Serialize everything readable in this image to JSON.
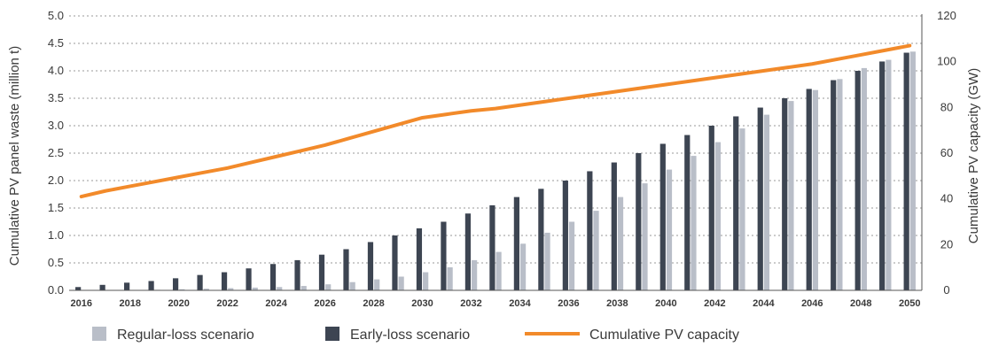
{
  "chart_data": {
    "type": "bar",
    "categories": [
      "2016",
      "2017",
      "2018",
      "2019",
      "2020",
      "2021",
      "2022",
      "2023",
      "2024",
      "2025",
      "2026",
      "2027",
      "2028",
      "2029",
      "2030",
      "2031",
      "2032",
      "2033",
      "2034",
      "2035",
      "2036",
      "2037",
      "2038",
      "2039",
      "2040",
      "2041",
      "2042",
      "2043",
      "2044",
      "2045",
      "2046",
      "2047",
      "2048",
      "2049",
      "2050"
    ],
    "x_tick_labels": [
      "2016",
      "2018",
      "2020",
      "2022",
      "2024",
      "2026",
      "2028",
      "2030",
      "2032",
      "2034",
      "2036",
      "2038",
      "2040",
      "2042",
      "2044",
      "2046",
      "2048",
      "2050"
    ],
    "series": [
      {
        "name": "Regular-loss scenario",
        "type": "bar",
        "axis": "left",
        "color": "#b9bec8",
        "values": [
          0.0,
          0.0,
          0.0,
          0.01,
          0.02,
          0.03,
          0.04,
          0.05,
          0.06,
          0.08,
          0.11,
          0.15,
          0.2,
          0.25,
          0.33,
          0.42,
          0.55,
          0.7,
          0.85,
          1.05,
          1.25,
          1.45,
          1.7,
          1.95,
          2.2,
          2.45,
          2.7,
          2.95,
          3.2,
          3.45,
          3.65,
          3.85,
          4.05,
          4.2,
          4.35
        ]
      },
      {
        "name": "Early-loss scenario",
        "type": "bar",
        "axis": "left",
        "color": "#3d4552",
        "values": [
          0.06,
          0.1,
          0.14,
          0.17,
          0.22,
          0.28,
          0.33,
          0.4,
          0.48,
          0.55,
          0.65,
          0.75,
          0.88,
          1.0,
          1.13,
          1.25,
          1.4,
          1.55,
          1.7,
          1.85,
          2.0,
          2.17,
          2.33,
          2.5,
          2.67,
          2.83,
          3.0,
          3.17,
          3.33,
          3.5,
          3.67,
          3.83,
          4.0,
          4.17,
          4.33
        ]
      },
      {
        "name": "Cumulative PV capacity",
        "type": "line",
        "axis": "right",
        "color": "#f28a2a",
        "values": [
          41,
          43.5,
          45.5,
          47.5,
          49.5,
          51.5,
          53.5,
          56,
          58.5,
          61,
          63.5,
          66.5,
          69.5,
          72.5,
          75.5,
          77,
          78.5,
          79.5,
          81,
          82.5,
          84,
          85.5,
          87,
          88.5,
          90,
          91.5,
          93,
          94.5,
          96,
          97.5,
          99,
          101,
          103,
          105,
          107
        ]
      }
    ],
    "ylabel": "Cumulative PV panel waste (million t)",
    "y2label": "Cumulative PV capacity (GW)",
    "ylim": [
      0,
      5.0
    ],
    "y_ticks": [
      "0.0",
      "0.5",
      "1.0",
      "1.5",
      "2.0",
      "2.5",
      "3.0",
      "3.5",
      "4.0",
      "4.5",
      "5.0"
    ],
    "y2lim": [
      0,
      120
    ],
    "y2_ticks": [
      "0",
      "20",
      "40",
      "60",
      "80",
      "100",
      "120"
    ],
    "grid": "horizontal-dotted",
    "legend_position": "bottom"
  }
}
